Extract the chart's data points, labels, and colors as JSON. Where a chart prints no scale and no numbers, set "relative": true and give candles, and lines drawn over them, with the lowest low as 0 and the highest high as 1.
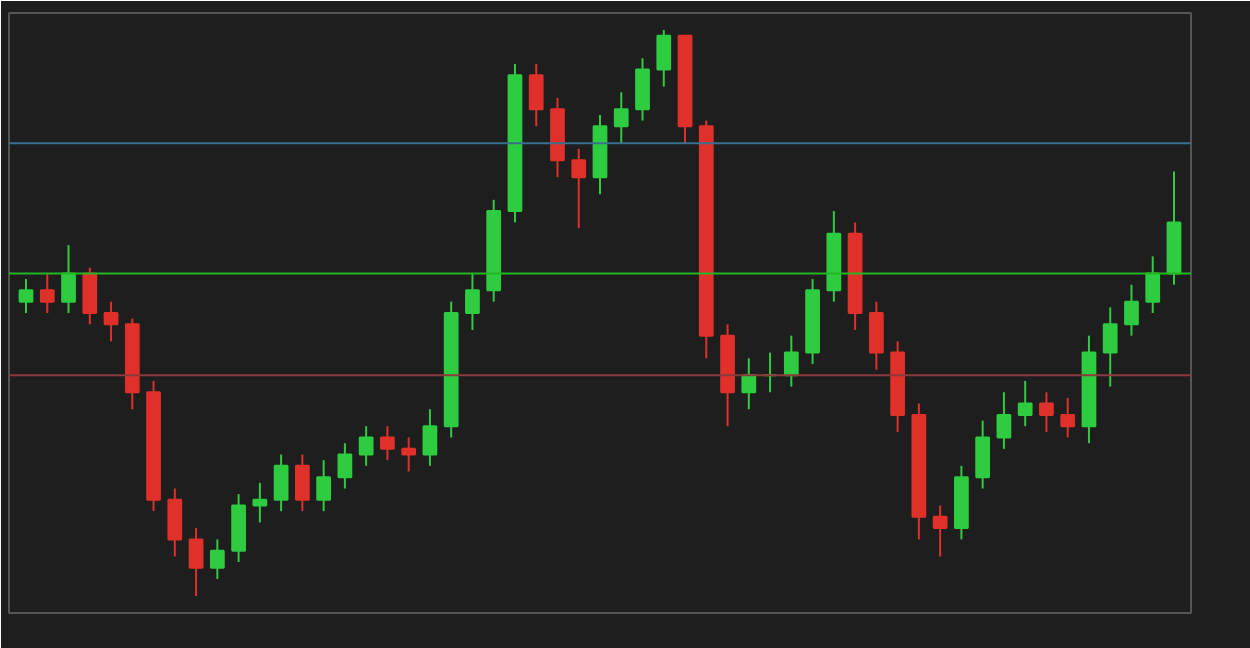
{
  "chart_data": {
    "type": "candlestick",
    "relative": true,
    "tick_labels": false,
    "categories": [
      null,
      null,
      null,
      null,
      null,
      null,
      null,
      null,
      null,
      null,
      null,
      null,
      null,
      null,
      null,
      null,
      null,
      null,
      null,
      null,
      null,
      null,
      null,
      null,
      null,
      null,
      null,
      null,
      null,
      null,
      null,
      null,
      null,
      null,
      null,
      null,
      null,
      null,
      null,
      null,
      null,
      null,
      null,
      null,
      null,
      null,
      null,
      null,
      null,
      null,
      null,
      null,
      null,
      null,
      null
    ],
    "ohlc": [
      [
        0.52,
        0.56,
        0.5,
        0.54
      ],
      [
        0.54,
        0.57,
        0.5,
        0.52
      ],
      [
        0.52,
        0.62,
        0.5,
        0.57
      ],
      [
        0.57,
        0.58,
        0.48,
        0.5
      ],
      [
        0.5,
        0.52,
        0.45,
        0.48
      ],
      [
        0.48,
        0.49,
        0.33,
        0.36
      ],
      [
        0.36,
        0.38,
        0.15,
        0.17
      ],
      [
        0.17,
        0.19,
        0.07,
        0.1
      ],
      [
        0.1,
        0.12,
        0.0,
        0.05
      ],
      [
        0.05,
        0.1,
        0.03,
        0.08
      ],
      [
        0.08,
        0.18,
        0.06,
        0.16
      ],
      [
        0.16,
        0.2,
        0.13,
        0.17
      ],
      [
        0.17,
        0.25,
        0.15,
        0.23
      ],
      [
        0.23,
        0.25,
        0.15,
        0.17
      ],
      [
        0.17,
        0.24,
        0.15,
        0.21
      ],
      [
        0.21,
        0.27,
        0.19,
        0.25
      ],
      [
        0.25,
        0.3,
        0.23,
        0.28
      ],
      [
        0.28,
        0.3,
        0.24,
        0.26
      ],
      [
        0.26,
        0.28,
        0.22,
        0.25
      ],
      [
        0.25,
        0.33,
        0.23,
        0.3
      ],
      [
        0.3,
        0.52,
        0.28,
        0.5
      ],
      [
        0.5,
        0.57,
        0.47,
        0.54
      ],
      [
        0.54,
        0.7,
        0.52,
        0.68
      ],
      [
        0.68,
        0.94,
        0.66,
        0.92
      ],
      [
        0.92,
        0.94,
        0.83,
        0.86
      ],
      [
        0.86,
        0.88,
        0.74,
        0.77
      ],
      [
        0.77,
        0.79,
        0.65,
        0.74
      ],
      [
        0.74,
        0.85,
        0.71,
        0.83
      ],
      [
        0.83,
        0.89,
        0.8,
        0.86
      ],
      [
        0.86,
        0.95,
        0.84,
        0.93
      ],
      [
        0.93,
        1.0,
        0.9,
        0.99
      ],
      [
        0.99,
        0.99,
        0.8,
        0.83
      ],
      [
        0.83,
        0.84,
        0.42,
        0.46
      ],
      [
        0.46,
        0.48,
        0.3,
        0.36
      ],
      [
        0.36,
        0.42,
        0.33,
        0.39
      ],
      [
        0.39,
        0.43,
        0.36,
        0.39
      ],
      [
        0.39,
        0.46,
        0.37,
        0.43
      ],
      [
        0.43,
        0.56,
        0.41,
        0.54
      ],
      [
        0.54,
        0.68,
        0.52,
        0.64
      ],
      [
        0.64,
        0.66,
        0.47,
        0.5
      ],
      [
        0.5,
        0.52,
        0.4,
        0.43
      ],
      [
        0.43,
        0.45,
        0.29,
        0.32
      ],
      [
        0.32,
        0.34,
        0.1,
        0.14
      ],
      [
        0.14,
        0.16,
        0.07,
        0.12
      ],
      [
        0.12,
        0.23,
        0.1,
        0.21
      ],
      [
        0.21,
        0.31,
        0.19,
        0.28
      ],
      [
        0.28,
        0.36,
        0.26,
        0.32
      ],
      [
        0.32,
        0.38,
        0.3,
        0.34
      ],
      [
        0.34,
        0.36,
        0.29,
        0.32
      ],
      [
        0.32,
        0.35,
        0.28,
        0.3
      ],
      [
        0.3,
        0.46,
        0.27,
        0.43
      ],
      [
        0.43,
        0.51,
        0.37,
        0.48
      ],
      [
        0.48,
        0.55,
        0.46,
        0.52
      ],
      [
        0.52,
        0.6,
        0.5,
        0.57
      ],
      [
        0.57,
        0.75,
        0.55,
        0.66
      ]
    ],
    "ref_lines": [
      {
        "axis": "y",
        "value": 0.57,
        "color": "#22b822"
      },
      {
        "axis": "y",
        "value": 0.8,
        "color": "#3a6f8f"
      },
      {
        "axis": "y",
        "value": 0.39,
        "color": "#8a3a3a"
      }
    ]
  }
}
